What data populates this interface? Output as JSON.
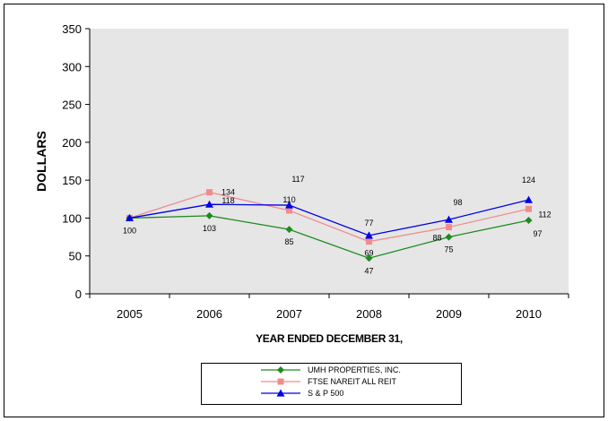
{
  "chart_data": {
    "type": "line",
    "title": "",
    "xlabel": "YEAR ENDED DECEMBER 31,",
    "ylabel": "DOLLARS",
    "categories": [
      "2005",
      "2006",
      "2007",
      "2008",
      "2009",
      "2010"
    ],
    "ylim": [
      0,
      350
    ],
    "yticks": [
      0,
      50,
      100,
      150,
      200,
      250,
      300,
      350
    ],
    "grid": false,
    "legend_position": "bottom",
    "series": [
      {
        "name": "UMH PROPERTIES, INC.",
        "values": [
          100,
          103,
          85,
          47,
          75,
          97
        ],
        "labels": [
          "100",
          "103",
          "85",
          "47",
          "75",
          "97"
        ],
        "color": "#1e8a1e",
        "marker": "diamond"
      },
      {
        "name": "FTSE NAREIT ALL REIT",
        "values": [
          100,
          134,
          110,
          69,
          88,
          112
        ],
        "labels": [
          "",
          "134",
          "110",
          "69",
          "88",
          "112"
        ],
        "color": "#f08c8c",
        "marker": "square"
      },
      {
        "name": "S & P 500",
        "values": [
          100,
          118,
          117,
          77,
          98,
          124
        ],
        "labels": [
          "",
          "118",
          "117",
          "77",
          "98",
          "124"
        ],
        "color": "#0000e6",
        "marker": "triangle"
      }
    ],
    "plot_background": "#e6e6e6"
  }
}
